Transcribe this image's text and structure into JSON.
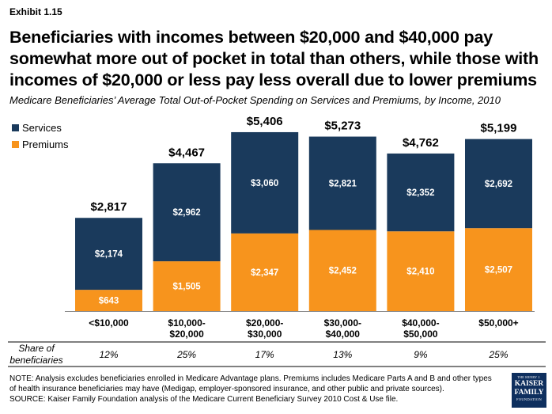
{
  "exhibit": "Exhibit 1.15",
  "title": "Beneficiaries with incomes between $20,000 and $40,000 pay somewhat more out of pocket in total than others, while those with incomes of $20,000 or less pay less overall due to lower premiums",
  "subtitle": "Medicare Beneficiaries’ Average Total Out-of-Pocket Spending on Services and Premiums, by Income, 2010",
  "colors": {
    "services": "#1a3a5c",
    "premiums": "#f7941d"
  },
  "chart_data": {
    "type": "bar",
    "stacked": true,
    "categories": [
      [
        "<$10,000"
      ],
      [
        "$10,000-",
        "$20,000"
      ],
      [
        "$20,000-",
        "$30,000"
      ],
      [
        "$30,000-",
        "$40,000"
      ],
      [
        "$40,000-",
        "$50,000"
      ],
      [
        "$50,000+"
      ]
    ],
    "series": [
      {
        "name": "Premiums",
        "values": [
          643,
          1505,
          2347,
          2452,
          2410,
          2507
        ],
        "labels": [
          "$643",
          "$1,505",
          "$2,347",
          "$2,452",
          "$2,410",
          "$2,507"
        ]
      },
      {
        "name": "Services",
        "values": [
          2174,
          2962,
          3060,
          2821,
          2352,
          2692
        ],
        "labels": [
          "$2,174",
          "$2,962",
          "$3,060",
          "$2,821",
          "$2,352",
          "$2,692"
        ]
      }
    ],
    "totals": [
      "$2,817",
      "$4,467",
      "$5,406",
      "$5,273",
      "$4,762",
      "$5,199"
    ],
    "legend": [
      "Services",
      "Premiums"
    ],
    "legend_position": "top-left",
    "ylim": [
      0,
      5406
    ],
    "share_label": [
      "Share of",
      "beneficiaries"
    ],
    "share": [
      "12%",
      "25%",
      "17%",
      "13%",
      "9%",
      "25%"
    ]
  },
  "note": "NOTE: Analysis excludes beneficiaries enrolled in Medicare Advantage plans. Premiums includes Medicare Parts A and B and other types of health insurance beneficiaries may have (Medigap, employer-sponsored insurance, and other public and private sources).",
  "source": "SOURCE: Kaiser Family Foundation analysis of the Medicare Current Beneficiary Survey 2010 Cost & Use file.",
  "logo": {
    "line1": "THE HENRY J.",
    "line2a": "KAISER",
    "line2b": "FAMILY",
    "line3": "FOUNDATION"
  }
}
